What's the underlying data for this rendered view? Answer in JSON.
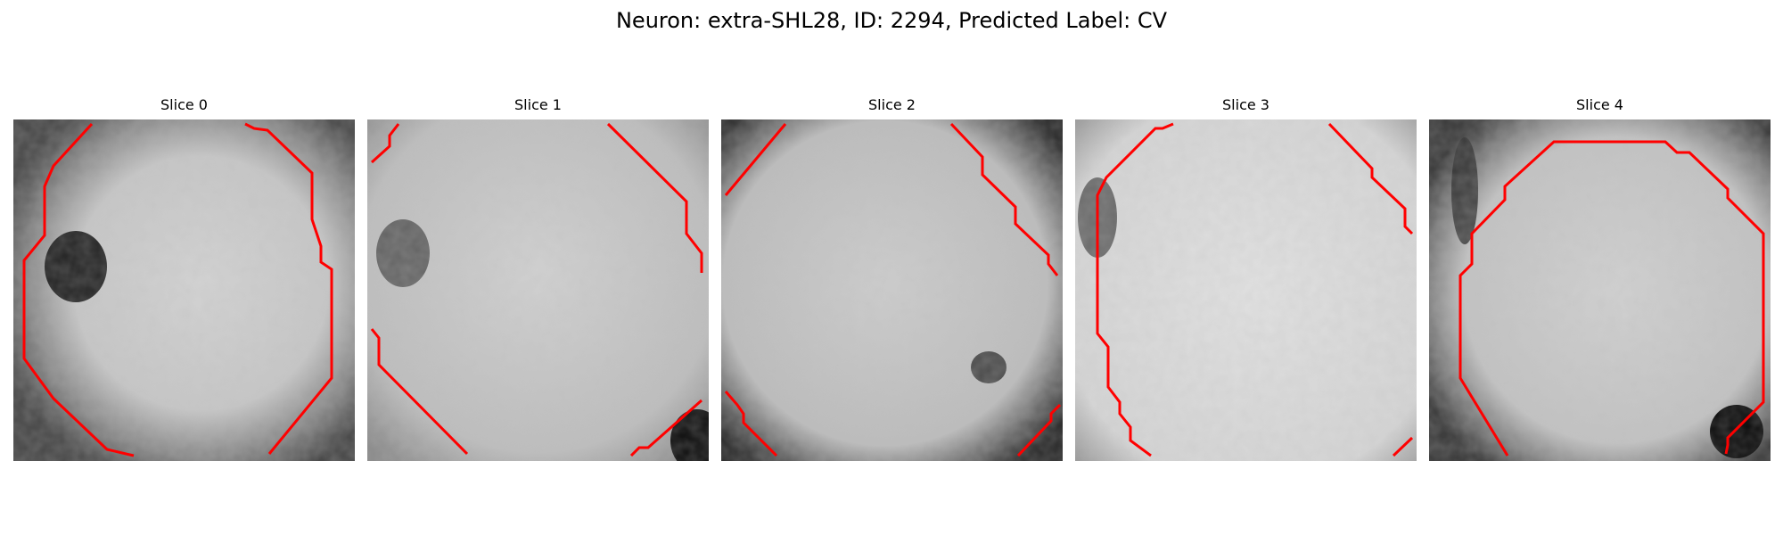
{
  "figure": {
    "title": "Neuron: extra-SHL28, ID: 2294, Predicted Label: CV"
  },
  "colors": {
    "contour": "#ff0000",
    "background": "#ffffff"
  },
  "panels": [
    {
      "title": "Slice 0"
    },
    {
      "title": "Slice 1"
    },
    {
      "title": "Slice 2"
    },
    {
      "title": "Slice 3"
    },
    {
      "title": "Slice 4"
    }
  ]
}
